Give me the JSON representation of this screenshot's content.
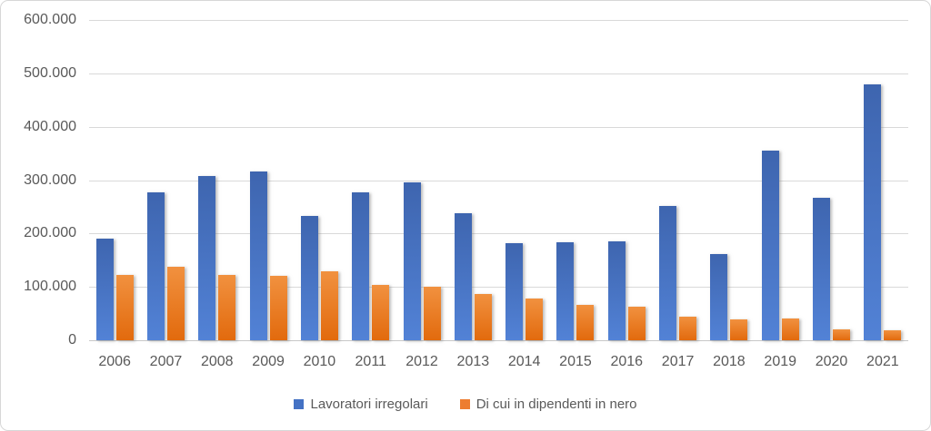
{
  "chart_data": {
    "type": "bar",
    "title": "",
    "xlabel": "",
    "ylabel": "",
    "grid": true,
    "legend_position": "bottom",
    "ylim": [
      0,
      600000
    ],
    "ytick_values": [
      0,
      100000,
      200000,
      300000,
      400000,
      500000,
      600000
    ],
    "ytick_labels": [
      "0",
      "100.000",
      "200.000",
      "300.000",
      "400.000",
      "500.000",
      "600.000"
    ],
    "categories": [
      "2006",
      "2007",
      "2008",
      "2009",
      "2010",
      "2011",
      "2012",
      "2013",
      "2014",
      "2015",
      "2016",
      "2017",
      "2018",
      "2019",
      "2020",
      "2021"
    ],
    "series": [
      {
        "name": "Lavoratori irregolari",
        "color": "#4472C4",
        "color_top": "#3E65AF",
        "color_bottom": "#5282D6",
        "values": [
          190000,
          277000,
          307000,
          316000,
          233000,
          277000,
          295000,
          238000,
          182000,
          183000,
          186000,
          252000,
          162000,
          356000,
          267000,
          479000
        ]
      },
      {
        "name": "Di cui in dipendenti in nero",
        "color": "#ED7D31",
        "color_top": "#F1913F",
        "color_bottom": "#E26A0D",
        "values": [
          122000,
          138000,
          123000,
          120000,
          129000,
          104000,
          100000,
          87000,
          78000,
          66000,
          63000,
          45000,
          39000,
          40000,
          20000,
          18000
        ]
      }
    ]
  },
  "colors": {
    "gridline": "#d9d9d9",
    "axis_text": "#595959",
    "frame_border": "#d7d7d7",
    "background": "#ffffff"
  }
}
